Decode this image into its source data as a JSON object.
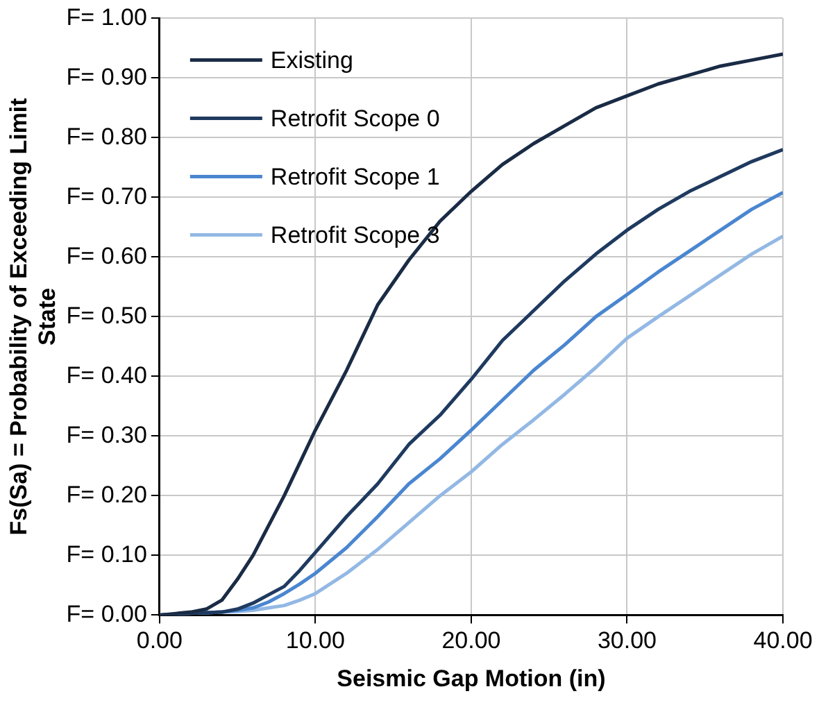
{
  "chart_data": {
    "type": "line",
    "xlabel": "Seismic Gap Motion (in)",
    "ylabel": "Fs(Sa) = Probability of Exceeding Limit State",
    "x": [
      0,
      2,
      3,
      4,
      5,
      6,
      7,
      8,
      9,
      10,
      12,
      14,
      16,
      18,
      20,
      22,
      24,
      26,
      28,
      30,
      32,
      34,
      36,
      38,
      40
    ],
    "series": [
      {
        "name": "Existing",
        "color": "#1a2b45",
        "values": [
          0,
          0.005,
          0.01,
          0.025,
          0.06,
          0.1,
          0.15,
          0.2,
          0.255,
          0.31,
          0.41,
          0.52,
          0.595,
          0.66,
          0.71,
          0.755,
          0.79,
          0.82,
          0.85,
          0.87,
          0.89,
          0.905,
          0.92,
          0.93,
          0.94
        ]
      },
      {
        "name": "Retrofit Scope 0",
        "color": "#1f3a5f",
        "values": [
          0,
          0.003,
          0.004,
          0.005,
          0.01,
          0.02,
          0.034,
          0.048,
          0.075,
          0.105,
          0.165,
          0.22,
          0.286,
          0.335,
          0.395,
          0.46,
          0.51,
          0.56,
          0.605,
          0.645,
          0.68,
          0.71,
          0.735,
          0.76,
          0.78
        ]
      },
      {
        "name": "Retrofit Scope 1",
        "color": "#4a86d0",
        "values": [
          0,
          0.003,
          0.004,
          0.005,
          0.008,
          0.012,
          0.022,
          0.036,
          0.052,
          0.07,
          0.113,
          0.165,
          0.22,
          0.262,
          0.31,
          0.36,
          0.41,
          0.453,
          0.5,
          0.537,
          0.575,
          0.61,
          0.645,
          0.68,
          0.708
        ]
      },
      {
        "name": "Retrofit Scope 3",
        "color": "#93b8e4",
        "values": [
          0,
          0.003,
          0.004,
          0.005,
          0.006,
          0.008,
          0.012,
          0.016,
          0.025,
          0.036,
          0.07,
          0.11,
          0.155,
          0.2,
          0.24,
          0.286,
          0.327,
          0.37,
          0.415,
          0.464,
          0.5,
          0.535,
          0.57,
          0.605,
          0.635
        ]
      }
    ],
    "xlim": [
      0,
      40
    ],
    "xticks": [
      {
        "value": 0,
        "label": "0.00"
      },
      {
        "value": 10,
        "label": "10.00"
      },
      {
        "value": 20,
        "label": "20.00"
      },
      {
        "value": 30,
        "label": "30.00"
      },
      {
        "value": 40,
        "label": "40.00"
      }
    ],
    "ylim": [
      0,
      1
    ],
    "yticks": [
      {
        "value": 0,
        "label": "F= 0.00"
      },
      {
        "value": 0.1,
        "label": "F= 0.10"
      },
      {
        "value": 0.2,
        "label": "F= 0.20"
      },
      {
        "value": 0.3,
        "label": "F= 0.30"
      },
      {
        "value": 0.4,
        "label": "F= 0.40"
      },
      {
        "value": 0.5,
        "label": "F= 0.50"
      },
      {
        "value": 0.6,
        "label": "F= 0.60"
      },
      {
        "value": 0.7,
        "label": "F= 0.70"
      },
      {
        "value": 0.8,
        "label": "F= 0.80"
      },
      {
        "value": 0.9,
        "label": "F= 0.90"
      },
      {
        "value": 1,
        "label": "F= 1.00"
      }
    ],
    "grid": true,
    "legend": "top left",
    "marker": "none",
    "line_style": "solid"
  }
}
